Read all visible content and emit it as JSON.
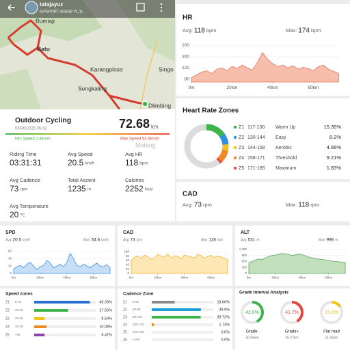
{
  "header": {
    "user": "tatajayuz",
    "device": "iGPSPORT iGS618  V1.11"
  },
  "map": {
    "places": [
      "Bumiaji",
      "Batu",
      "Karangploso",
      "Singo",
      "Sengkaling",
      "Dlimbing",
      "Malang"
    ]
  },
  "summary": {
    "activity": "Outdoor Cycling",
    "date": "05/06/2025 05:42",
    "distance": "72.68",
    "distance_unit": "km",
    "min_speed": "Min Speed 1.9km/h",
    "max_speed": "Max Speed 54.6km/h",
    "stats": [
      {
        "label": "Riding Time",
        "value": "03:31:31"
      },
      {
        "label": "Avg Speed",
        "value": "20.5",
        "unit": "km/h"
      },
      {
        "label": "Avg HR",
        "value": "118",
        "unit": "bpm"
      },
      {
        "label": "Avg Cadence",
        "value": "73",
        "unit": "rpm"
      },
      {
        "label": "Total Ascent",
        "value": "1235",
        "unit": "m"
      },
      {
        "label": "Calories",
        "value": "2252",
        "unit": "kcal"
      },
      {
        "label": "Avg Temperature",
        "value": "20",
        "unit": "℃"
      }
    ]
  },
  "cad_panel": {
    "title": "CAD",
    "avg_label": "Avg:",
    "avg": "73",
    "avg_unit": "rpm",
    "max_label": "Max:",
    "max": "118",
    "max_unit": "rpm"
  },
  "chart_data": [
    {
      "type": "line",
      "title": "HR",
      "avg_label": "Avg:",
      "avg": "118",
      "avg_unit": "bpm",
      "max_label": "Max:",
      "max": "174",
      "max_unit": "bpm",
      "x": [
        0,
        2.5,
        5,
        7.5,
        10,
        12.5,
        15,
        17.5,
        20,
        22.5,
        25,
        27.5,
        30,
        32.5,
        35,
        37.5,
        40,
        42.5,
        45,
        47.5,
        50,
        52.5,
        55,
        57.5,
        60,
        62.5,
        65,
        67.5,
        70,
        72.5
      ],
      "values": [
        85,
        95,
        105,
        110,
        100,
        115,
        120,
        110,
        125,
        118,
        130,
        120,
        112,
        140,
        174,
        150,
        135,
        125,
        130,
        120,
        128,
        115,
        122,
        118,
        110,
        125,
        130,
        115,
        108,
        100
      ],
      "color": "#e8735a",
      "fill": "#f6b39c",
      "xlim": [
        0,
        73
      ],
      "xticks": [
        {
          "value": 0,
          "label": "0m"
        },
        {
          "value": 20,
          "label": "20km"
        },
        {
          "value": 40,
          "label": "40km"
        },
        {
          "value": 60,
          "label": "60km"
        }
      ],
      "ylim": [
        70,
        210
      ],
      "yticks": [
        80,
        120,
        160,
        200
      ]
    },
    {
      "type": "donut",
      "title": "Heart Rate Zones",
      "categories": [
        "Z1",
        "Z2",
        "Z3",
        "Z4",
        "Z5"
      ],
      "ranges": [
        "117-130",
        "130-144",
        "144-158",
        "158-171",
        "171-185"
      ],
      "names": [
        "Warm Up",
        "Easy",
        "Aerobic",
        "Threshold",
        "Maximum"
      ],
      "values": [
        15.35,
        8.2,
        4.66,
        9.21,
        1.83
      ],
      "value_labels": [
        "15.35%",
        "8.2%",
        "4.66%",
        "9.21%",
        "1.83%"
      ],
      "colors": [
        "#3cb44b",
        "#2f8fe0",
        "#f0c419",
        "#f08a24",
        "#e8463a"
      ]
    },
    {
      "type": "line",
      "title": "SPD",
      "avg_label": "Avg",
      "avg": "20.5",
      "avg_unit": "km/h",
      "max_label": "Max",
      "max": "54.6",
      "max_unit": "km/h",
      "x": [
        0,
        2.5,
        5,
        7.5,
        10,
        12.5,
        15,
        17.5,
        20,
        22.5,
        25,
        27.5,
        30,
        32.5,
        35,
        37.5,
        40,
        42.5,
        45,
        47.5,
        50,
        52.5,
        55,
        57.5,
        60,
        62.5,
        65,
        67.5,
        70,
        72.5
      ],
      "values": [
        12,
        18,
        22,
        15,
        25,
        30,
        20,
        10,
        18,
        22,
        35,
        28,
        15,
        20,
        25,
        18,
        30,
        54.6,
        40,
        22,
        18,
        25,
        20,
        15,
        22,
        28,
        20,
        18,
        24,
        15
      ],
      "color": "#3a8fe0",
      "fill": "#bcd9f5",
      "xlim": [
        0,
        73
      ],
      "xticks": [
        {
          "value": 0,
          "label": "0m"
        },
        {
          "value": 20,
          "label": "20km"
        },
        {
          "value": 40,
          "label": "40km"
        },
        {
          "value": 60,
          "label": "60km"
        }
      ],
      "ylim": [
        0,
        70
      ],
      "yticks": [
        0,
        20,
        40,
        60
      ]
    },
    {
      "type": "line",
      "title": "CAD",
      "avg_label": "Avg",
      "avg": "73",
      "avg_unit": "rpm",
      "max_label": "Max",
      "max": "118",
      "max_unit": "rpm",
      "x": [
        0,
        2.5,
        5,
        7.5,
        10,
        12.5,
        15,
        17.5,
        20,
        22.5,
        25,
        27.5,
        30,
        32.5,
        35,
        37.5,
        40,
        42.5,
        45,
        47.5,
        50,
        52.5,
        55,
        57.5,
        60,
        62.5,
        65,
        67.5,
        70,
        72.5
      ],
      "values": [
        60,
        75,
        80,
        70,
        85,
        78,
        65,
        72,
        88,
        80,
        75,
        90,
        70,
        82,
        78,
        68,
        85,
        80,
        76,
        72,
        88,
        82,
        70,
        78,
        84,
        74,
        80,
        76,
        70,
        65
      ],
      "color": "#f0b429",
      "fill": "#fbe3a8",
      "xlim": [
        0,
        73
      ],
      "xticks": [
        {
          "value": 0,
          "label": "0m"
        },
        {
          "value": 20,
          "label": "20km"
        },
        {
          "value": 40,
          "label": "40km"
        },
        {
          "value": 60,
          "label": "60km"
        }
      ],
      "ylim": [
        0,
        120
      ],
      "yticks": [
        0,
        20,
        40,
        60,
        80,
        100
      ]
    },
    {
      "type": "line",
      "title": "ALT",
      "avg_label": "Avg",
      "avg": "531",
      "avg_unit": "m",
      "max_label": "Max",
      "max": "998",
      "max_unit": "m",
      "x": [
        0,
        2.5,
        5,
        7.5,
        10,
        12.5,
        15,
        17.5,
        20,
        22.5,
        25,
        27.5,
        30,
        32.5,
        35,
        37.5,
        40,
        42.5,
        45,
        47.5,
        50,
        52.5,
        55,
        57.5,
        60,
        62.5,
        65,
        67.5,
        70,
        72.5
      ],
      "values": [
        531,
        600,
        680,
        720,
        700,
        780,
        850,
        900,
        920,
        960,
        998,
        980,
        950,
        900,
        930,
        960,
        940,
        880,
        820,
        780,
        760,
        720,
        700,
        680,
        650,
        620,
        600,
        580,
        560,
        540
      ],
      "color": "#5aa55a",
      "fill": "#b7dab0",
      "xlim": [
        0,
        73
      ],
      "xticks": [
        {
          "value": 0,
          "label": "0m"
        },
        {
          "value": 20,
          "label": "20km"
        },
        {
          "value": 40,
          "label": "40km"
        },
        {
          "value": 60,
          "label": "60km"
        }
      ],
      "ylim": [
        0,
        1300
      ],
      "yticks": [
        0,
        300,
        600,
        900,
        {
          "value": 1200,
          "label": "1,200"
        }
      ]
    },
    {
      "type": "hbar",
      "title": "Speed zones",
      "categories": [
        "Z1",
        "Z2",
        "Z3",
        "Z4",
        "Z5"
      ],
      "ranges": [
        "0-18",
        "18-26",
        "26-30",
        "30-35",
        ">35"
      ],
      "values": [
        45.33,
        27.56,
        8.54,
        10.09,
        8.47
      ],
      "value_labels": [
        "45.33%",
        "27.56%",
        "8.54%",
        "10.09%",
        "8.47%"
      ],
      "colors": [
        "#2b6fd6",
        "#3cb44b",
        "#f0c419",
        "#f08a24",
        "#8e44ad"
      ]
    },
    {
      "type": "hbar",
      "title": "Cadence Zone",
      "categories": [
        "Z1",
        "Z2",
        "Z3",
        "Z4",
        "Z5",
        "Z6"
      ],
      "ranges": [
        "0-60",
        "60-80",
        "80-100",
        "100-120",
        "120-160",
        ">160"
      ],
      "values": [
        18.66,
        39.9,
        39.72,
        1.73,
        0.0,
        0.0
      ],
      "value_labels": [
        "18.66%",
        "39.9%",
        "39.72%",
        "1.73%",
        "0.0%",
        "0.0%"
      ],
      "colors": [
        "#8a8a8a",
        "#1f9fd6",
        "#3cb44b",
        "#f08a24",
        "#c9a0dc",
        "#e0c060"
      ]
    },
    {
      "type": "rings",
      "title": "Grade Interval Analysis",
      "categories": [
        "Grade-",
        "Grade+",
        "Flat road"
      ],
      "values": [
        42.6,
        41.7,
        15.6
      ],
      "value_labels": [
        "42.6%",
        "41.7%",
        "15.6%"
      ],
      "distances": [
        "30.95km",
        "30.27km",
        "11.46km"
      ],
      "colors": [
        "#3cb44b",
        "#e8463a",
        "#f0c419"
      ]
    }
  ]
}
